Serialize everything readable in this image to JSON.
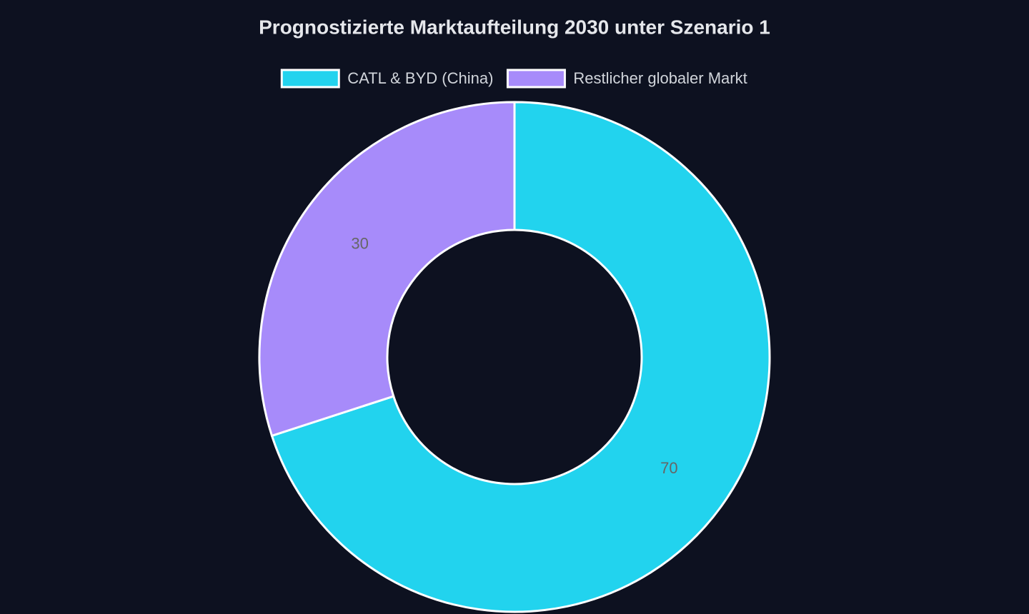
{
  "chart_data": {
    "type": "doughnut",
    "title": "Prognostizierte Marktaufteilung 2030 unter Szenario 1",
    "categories": [
      "CATL & BYD (China)",
      "Restlicher globaler Markt"
    ],
    "values": [
      70,
      30
    ],
    "colors": [
      "#22d3ee",
      "#a78bfa"
    ]
  }
}
